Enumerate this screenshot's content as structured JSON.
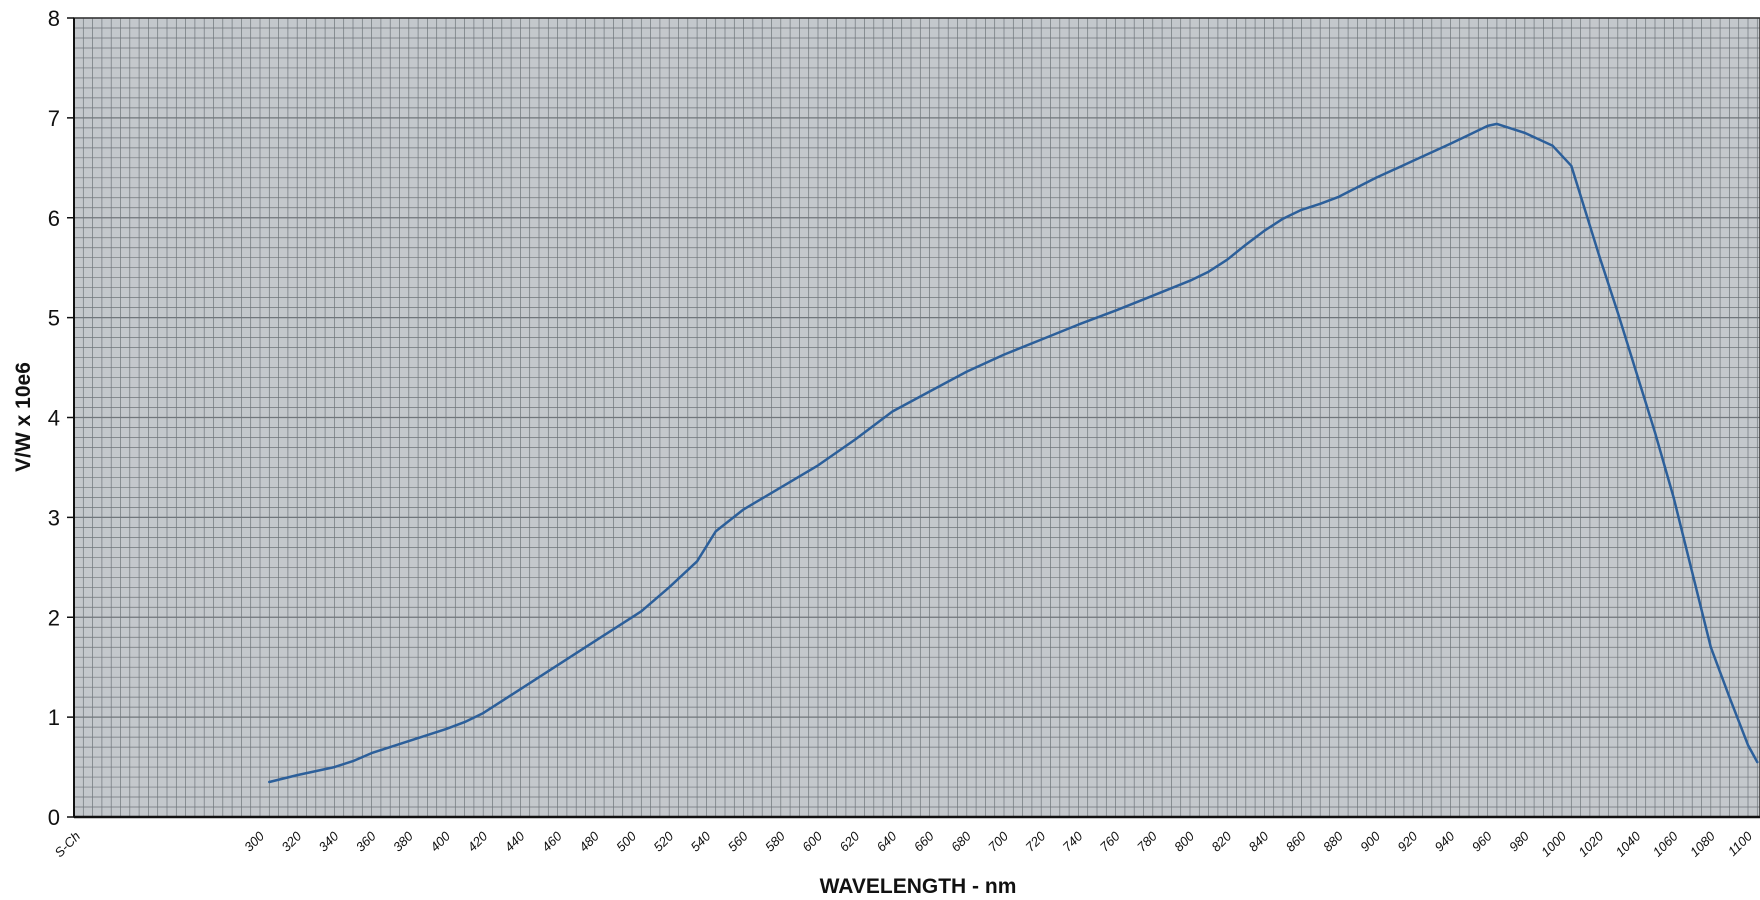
{
  "chart_data": {
    "type": "line",
    "xlabel": "WAVELENGTH - nm",
    "ylabel": "V/W x 10e6",
    "ylim": [
      0,
      8
    ],
    "y_ticks": [
      "0",
      "1",
      "2",
      "3",
      "4",
      "5",
      "6",
      "7",
      "8"
    ],
    "x_start_label": "S-Ch",
    "x_ticks": [
      "300",
      "320",
      "340",
      "360",
      "380",
      "400",
      "420",
      "440",
      "460",
      "480",
      "500",
      "520",
      "540",
      "560",
      "580",
      "600",
      "620",
      "640",
      "660",
      "680",
      "700",
      "720",
      "740",
      "760",
      "780",
      "800",
      "820",
      "840",
      "860",
      "880",
      "900",
      "920",
      "940",
      "960",
      "980",
      "1000",
      "1020",
      "1040",
      "1060",
      "1080",
      "1100"
    ],
    "grid": true,
    "colors": {
      "plot_background": "#c4c8cc",
      "grid_line": "#6f757a",
      "series_line": "#2c5f9a"
    },
    "series": [
      {
        "x": [
          305,
          320,
          340,
          350,
          360,
          380,
          400,
          410,
          420,
          440,
          460,
          480,
          500,
          505,
          520,
          535,
          545,
          560,
          580,
          600,
          620,
          640,
          660,
          680,
          700,
          720,
          740,
          760,
          780,
          800,
          810,
          820,
          830,
          840,
          850,
          860,
          870,
          880,
          900,
          920,
          940,
          950,
          960,
          965,
          980,
          995,
          1005,
          1010,
          1020,
          1030,
          1040,
          1050,
          1060,
          1070,
          1080,
          1090,
          1100,
          1105
        ],
        "y": [
          0.35,
          0.42,
          0.5,
          0.56,
          0.64,
          0.76,
          0.88,
          0.95,
          1.04,
          1.28,
          1.52,
          1.76,
          2.0,
          2.06,
          2.3,
          2.56,
          2.86,
          3.08,
          3.3,
          3.52,
          3.78,
          4.06,
          4.26,
          4.46,
          4.63,
          4.78,
          4.93,
          5.07,
          5.22,
          5.37,
          5.46,
          5.58,
          5.73,
          5.87,
          5.99,
          6.08,
          6.14,
          6.21,
          6.4,
          6.57,
          6.74,
          6.83,
          6.92,
          6.94,
          6.85,
          6.72,
          6.52,
          6.22,
          5.62,
          5.05,
          4.45,
          3.85,
          3.2,
          2.45,
          1.7,
          1.2,
          0.72,
          0.55
        ]
      }
    ]
  }
}
